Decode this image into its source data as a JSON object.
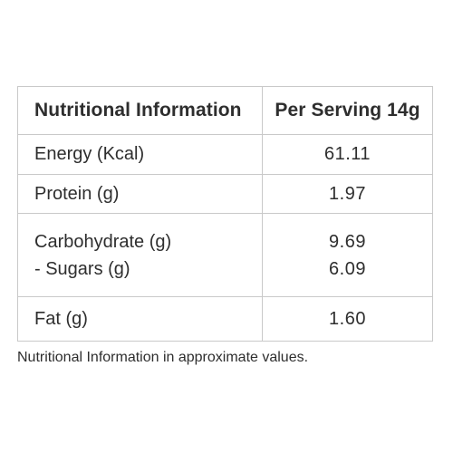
{
  "table": {
    "headers": {
      "nutrient": "Nutritional Information",
      "value": "Per Serving 14g"
    },
    "rows": {
      "energy": {
        "label": "Energy (Kcal)",
        "value": "61.11"
      },
      "protein": {
        "label": "Protein (g)",
        "value": "1.97"
      },
      "carbohydrate": {
        "label": "Carbohydrate (g)",
        "value": "9.69"
      },
      "sugars": {
        "label": "- Sugars (g)",
        "value": "6.09"
      },
      "fat": {
        "label": "Fat (g)",
        "value": "1.60"
      }
    }
  },
  "footnote": "Nutritional Information in approximate values."
}
